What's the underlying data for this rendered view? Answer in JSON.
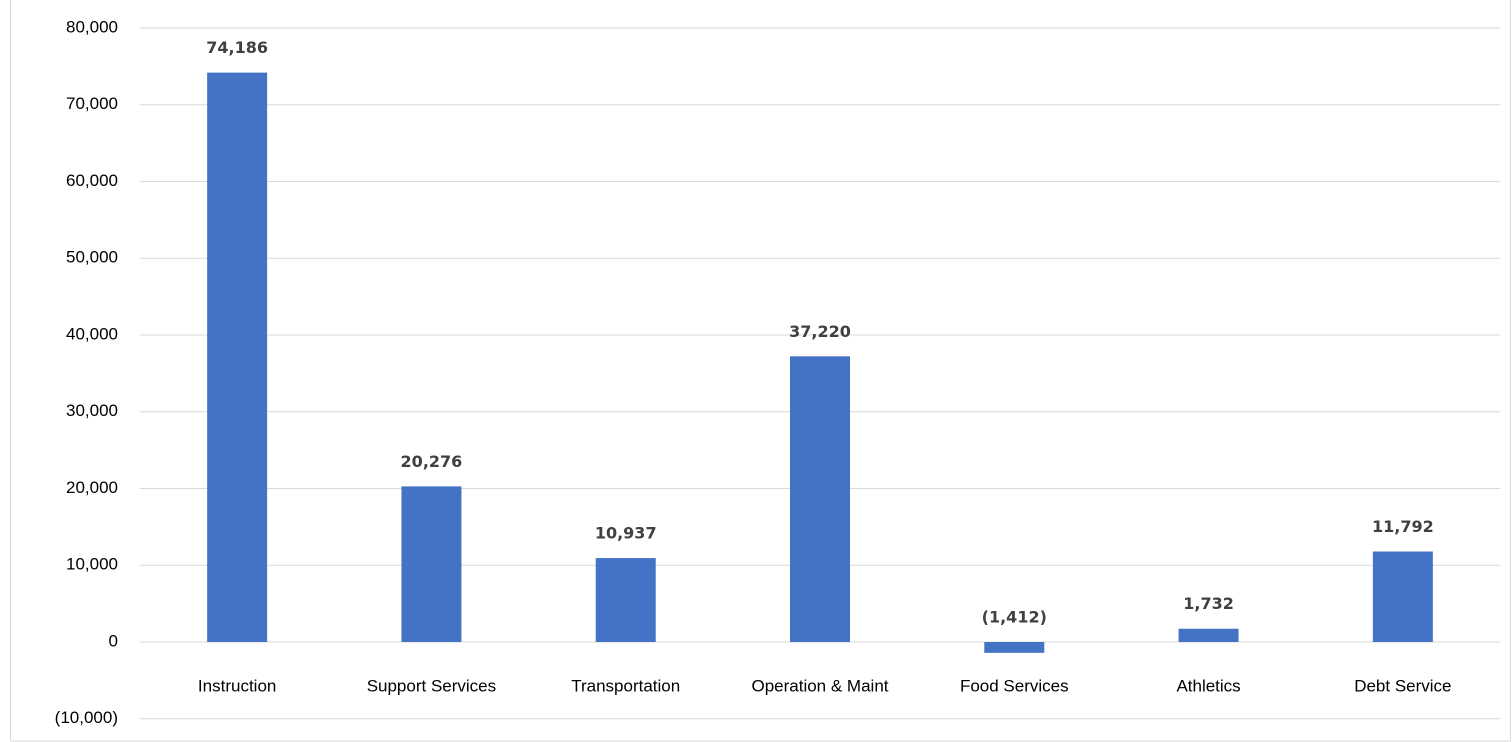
{
  "chart_data": {
    "type": "bar",
    "categories": [
      "Instruction",
      "Support Services",
      "Transportation",
      "Operation & Maint",
      "Food Services",
      "Athletics",
      "Debt Service"
    ],
    "values": [
      74186,
      20276,
      10937,
      37220,
      -1412,
      1732,
      11792
    ],
    "value_labels": [
      "74,186",
      "20,276",
      "10,937",
      "37,220",
      "(1,412)",
      "1,732",
      "11,792"
    ],
    "color": "#4472c4",
    "ylim": [
      -10000,
      80000
    ],
    "yticks": [
      {
        "value": -10000,
        "label": "(10,000)"
      },
      0,
      {
        "value": 10000,
        "label": "10,000"
      },
      {
        "value": 20000,
        "label": "20,000"
      },
      {
        "value": 30000,
        "label": "30,000"
      },
      {
        "value": 40000,
        "label": "40,000"
      },
      {
        "value": 50000,
        "label": "50,000"
      },
      {
        "value": 60000,
        "label": "60,000"
      },
      {
        "value": 70000,
        "label": "70,000"
      },
      {
        "value": 80000,
        "label": "80,000"
      }
    ],
    "grid": true
  }
}
